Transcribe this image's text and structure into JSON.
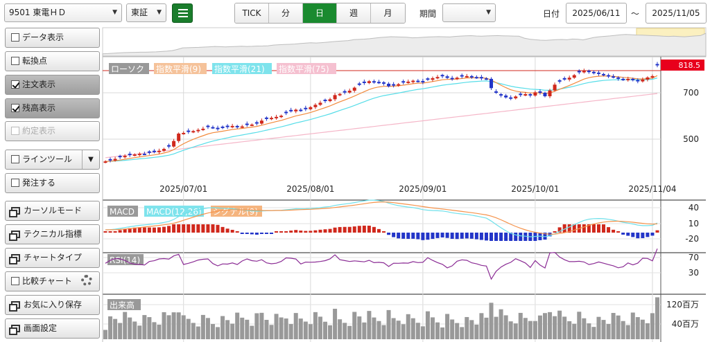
{
  "toolbar": {
    "symbol": "9501 東電ＨＤ",
    "market": "東証",
    "periods": [
      "TICK",
      "分",
      "日",
      "週",
      "月"
    ],
    "active_period": "日",
    "range_label": "期間",
    "range_value": "",
    "date_label": "日付",
    "date_from": "2025/06/11",
    "tilde": "～",
    "date_to": "2025/11/05",
    "list_icon": "list-icon"
  },
  "side": {
    "data_view": "データ表示",
    "turn_point": "転換点",
    "order_view": "注文表示",
    "position_view": "残高表示",
    "fill_view": "約定表示",
    "line_tool": "ラインツール",
    "place_order": "発注する",
    "cursor_mode": "カーソルモード",
    "technical": "テクニカル指標",
    "chart_type": "チャートタイプ",
    "compare": "比較チャート",
    "favorite_save": "お気に入り保存",
    "screen_settings": "画面設定"
  },
  "legend": {
    "candle": "ローソク",
    "ema9": "指数平滑(9)",
    "ema21": "指数平滑(21)",
    "ema75": "指数平滑(75)",
    "macd": "MACD",
    "macd_line": "MACD(12,26)",
    "signal": "シグナル(9)",
    "rsi": "RSI(14)",
    "volume": "出来高"
  },
  "colors": {
    "up": "#d0281c",
    "down": "#2335c8",
    "ema9": "#f28a3c",
    "ema21": "#55dde8",
    "ema75": "#f5b6c8",
    "macd": "#6fe0ea",
    "signal": "#f5924a",
    "rsi": "#8a2b94",
    "volume": "#999999",
    "accent": "#1a8a2f",
    "price_tag": "#e8001c"
  },
  "chart_data": {
    "type": "candlestick",
    "price_axis": {
      "ticks": [
        500,
        700
      ],
      "ylim": [
        400,
        860
      ]
    },
    "last_price": "818.5",
    "date_ticks": [
      "2025/07/01",
      "2025/08/01",
      "2025/09/01",
      "2025/10/01",
      "2025/11/04"
    ],
    "macd_ticks": [
      "40",
      "10",
      "-20"
    ],
    "rsi_ticks": [
      "70",
      "30"
    ],
    "volume_ticks": [
      "120百万",
      "40百万"
    ],
    "closes": [
      404,
      408,
      415,
      422,
      428,
      431,
      434,
      437,
      436,
      441,
      444,
      450,
      458,
      468,
      492,
      524,
      527,
      531,
      535,
      540,
      545,
      552,
      549,
      544,
      548,
      552,
      557,
      553,
      555,
      561,
      563,
      567,
      580,
      587,
      592,
      596,
      601,
      612,
      620,
      627,
      623,
      629,
      638,
      648,
      657,
      664,
      672,
      690,
      695,
      701,
      709,
      722,
      734,
      742,
      750,
      747,
      743,
      739,
      728,
      731,
      737,
      744,
      748,
      752,
      749,
      745,
      756,
      763,
      768,
      771,
      764,
      760,
      765,
      770,
      772,
      768,
      765,
      762,
      760,
      720,
      700,
      688,
      680,
      676,
      684,
      690,
      694,
      688,
      702,
      700,
      685,
      710,
      735,
      748,
      757,
      765,
      776,
      788,
      795,
      790,
      784,
      781,
      776,
      771,
      767,
      760,
      756,
      760,
      754,
      749,
      757,
      766,
      772,
      818
    ]
  }
}
